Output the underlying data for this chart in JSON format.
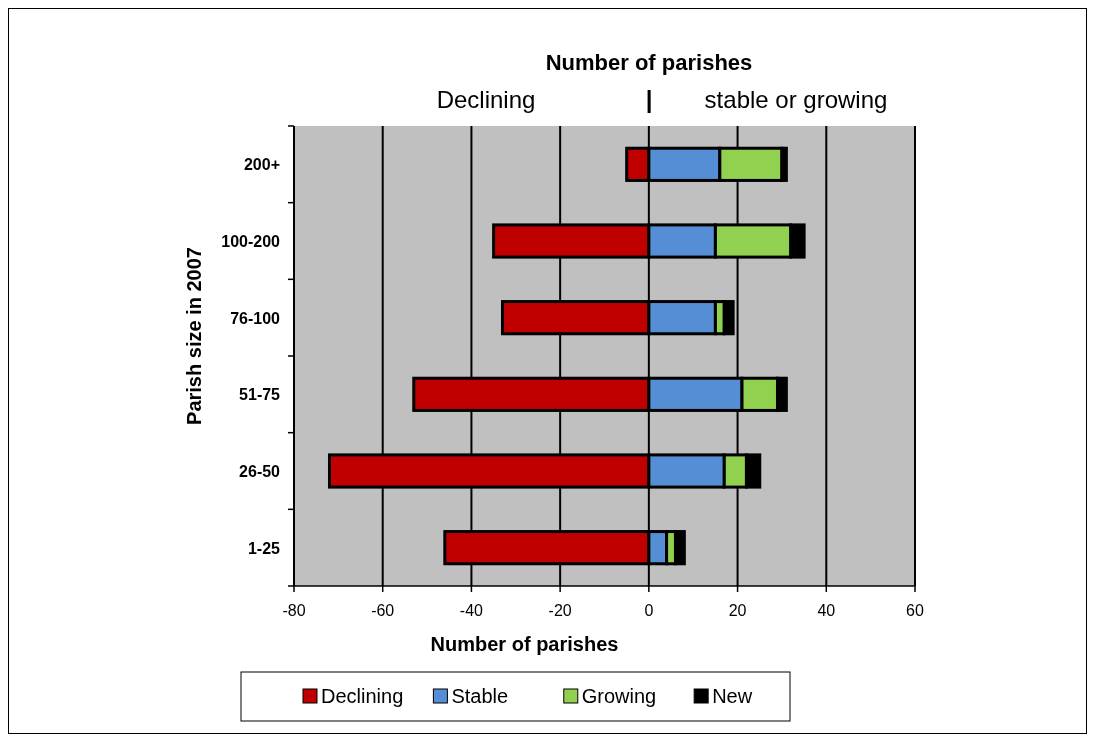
{
  "chart_data": {
    "type": "bar",
    "orientation": "horizontal",
    "stacked": true,
    "title": "Number of parishes",
    "xlabel": "Number of parishes",
    "ylabel": "Parish size in 2007",
    "annotations": [
      "Declining",
      "|",
      "stable or growing"
    ],
    "categories": [
      "200+",
      "100-200",
      "76-100",
      "51-75",
      "26-50",
      "1-25"
    ],
    "series": [
      {
        "name": "Declining",
        "color": "#c00000",
        "values": [
          -5,
          -35,
          -33,
          -53,
          -72,
          -46
        ]
      },
      {
        "name": "Stable",
        "color": "#558ed5",
        "values": [
          16,
          15,
          15,
          21,
          17,
          4
        ]
      },
      {
        "name": "Growing",
        "color": "#92d050",
        "values": [
          14,
          17,
          2,
          8,
          5,
          2
        ]
      },
      {
        "name": "New",
        "color": "#000000",
        "values": [
          1,
          3,
          2,
          2,
          3,
          2
        ]
      }
    ],
    "xlim": [
      -80,
      60
    ],
    "xticks": [
      -80,
      -60,
      -40,
      -20,
      0,
      20,
      40,
      60
    ],
    "grid": "x",
    "legend": "bottom"
  }
}
